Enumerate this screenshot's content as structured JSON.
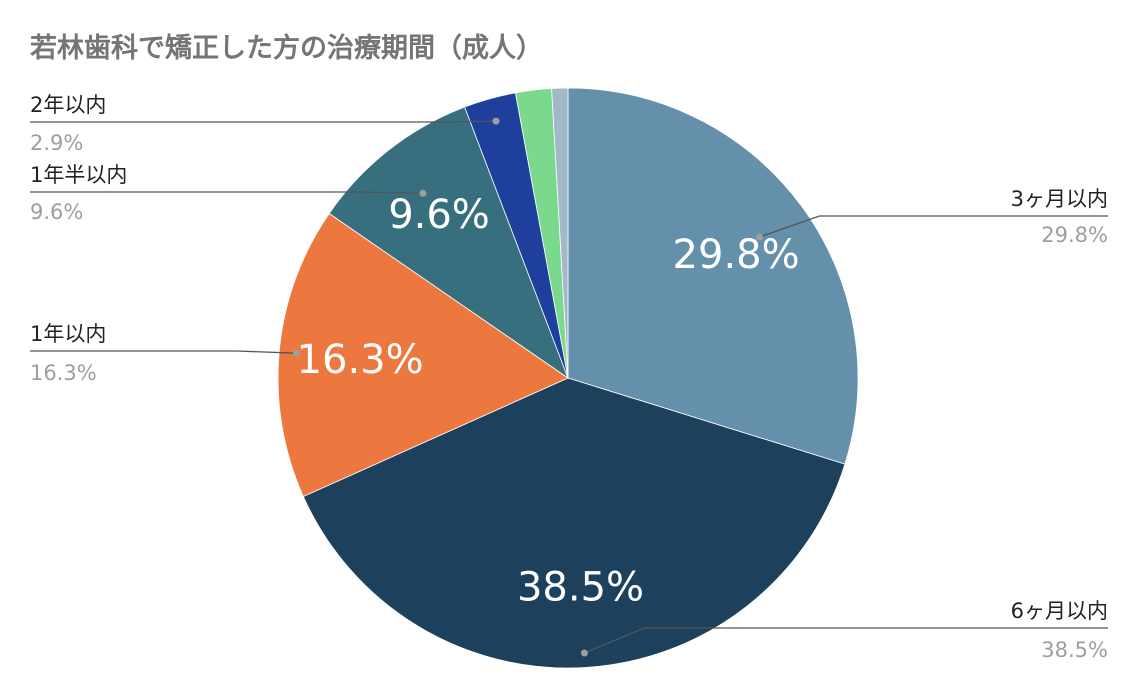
{
  "chart_data": {
    "type": "pie",
    "title": "若林歯科で矯正した方の治療期間（成人）",
    "slices": [
      {
        "label": "3ヶ月以内",
        "value": 29.8,
        "display": "29.8%",
        "color": "#6490ab",
        "inner_label": "29.8%"
      },
      {
        "label": "6ヶ月以内",
        "value": 38.5,
        "display": "38.5%",
        "color": "#1d415d",
        "inner_label": "38.5%"
      },
      {
        "label": "1年以内",
        "value": 16.3,
        "display": "16.3%",
        "color": "#ec7840",
        "inner_label": "16.3%"
      },
      {
        "label": "1年半以内",
        "value": 9.6,
        "display": "9.6%",
        "color": "#386f7f",
        "inner_label": "9.6%"
      },
      {
        "label": "2年以内",
        "value": 2.9,
        "display": "2.9%",
        "color": "#1f3f9c",
        "inner_label": ""
      },
      {
        "label": "",
        "value": 2.0,
        "display": "",
        "color": "#7ad98d",
        "inner_label": ""
      },
      {
        "label": "",
        "value": 0.9,
        "display": "",
        "color": "#a3b9c9",
        "inner_label": ""
      }
    ],
    "legend": "none"
  }
}
